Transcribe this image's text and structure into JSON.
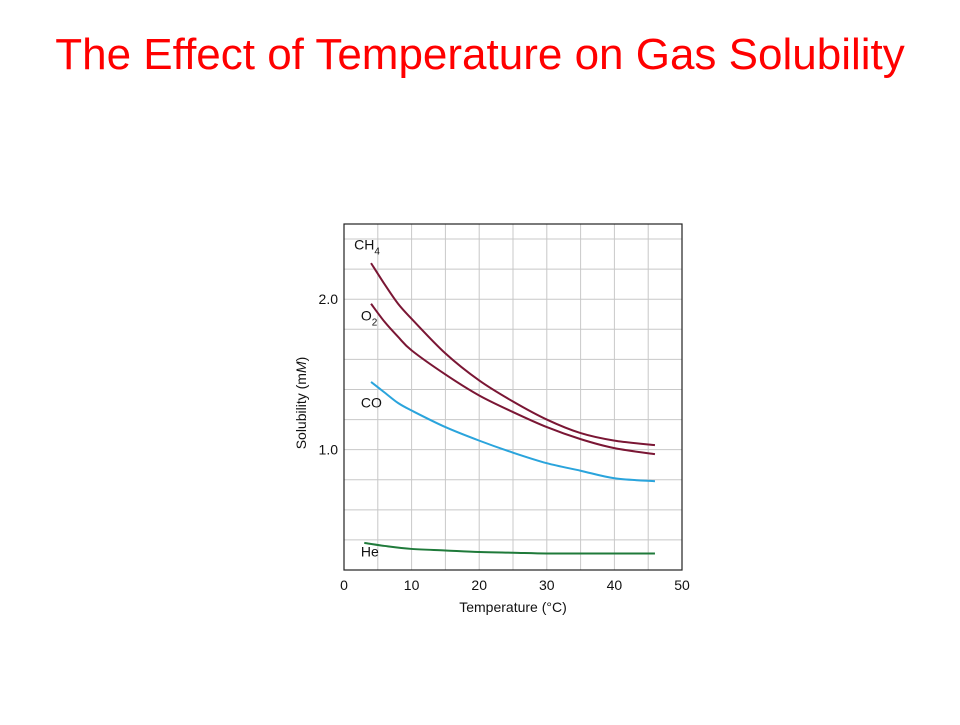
{
  "slide": {
    "title": "The Effect of Temperature on Gas Solubility"
  },
  "chart_data": {
    "type": "line",
    "title": "",
    "xlabel": "Temperature (°C)",
    "ylabel_main": "Solubility (m",
    "ylabel_unit": "M",
    "ylabel_close": ")",
    "xlim": [
      0,
      50
    ],
    "ylim": [
      0.2,
      2.5
    ],
    "xticks": [
      0,
      10,
      20,
      30,
      40,
      50
    ],
    "xtick_labels": [
      "0",
      "10",
      "20",
      "30",
      "40",
      "50"
    ],
    "yticks": [
      1.0,
      2.0
    ],
    "ytick_labels": [
      "1.0",
      "2.0"
    ],
    "grid": true,
    "legend": "inline labels",
    "series": [
      {
        "name": "CH4",
        "label_main": "CH",
        "label_sub": "4",
        "color": "#7a1634",
        "label_at": [
          1.5,
          2.33
        ],
        "x": [
          4,
          6,
          8,
          10,
          15,
          20,
          25,
          30,
          35,
          40,
          46
        ],
        "y": [
          2.24,
          2.1,
          1.97,
          1.87,
          1.64,
          1.46,
          1.32,
          1.2,
          1.11,
          1.06,
          1.03
        ]
      },
      {
        "name": "O2",
        "label_main": "O",
        "label_sub": "2",
        "color": "#7a1634",
        "label_at": [
          2.5,
          1.86
        ],
        "x": [
          4,
          6,
          8,
          10,
          15,
          20,
          25,
          30,
          35,
          40,
          46
        ],
        "y": [
          1.97,
          1.85,
          1.75,
          1.66,
          1.5,
          1.36,
          1.25,
          1.15,
          1.07,
          1.01,
          0.97
        ]
      },
      {
        "name": "CO",
        "label_main": "CO",
        "label_sub": "",
        "color": "#2aa4dc",
        "label_at": [
          2.5,
          1.28
        ],
        "x": [
          4,
          6,
          8,
          10,
          15,
          20,
          25,
          30,
          35,
          40,
          46
        ],
        "y": [
          1.45,
          1.38,
          1.31,
          1.26,
          1.15,
          1.06,
          0.98,
          0.91,
          0.86,
          0.81,
          0.79
        ]
      },
      {
        "name": "He",
        "label_main": "He",
        "label_sub": "",
        "color": "#1f7a3a",
        "label_at": [
          2.5,
          0.29
        ],
        "x": [
          3,
          6,
          10,
          15,
          20,
          25,
          30,
          35,
          40,
          46
        ],
        "y": [
          0.38,
          0.36,
          0.34,
          0.33,
          0.32,
          0.315,
          0.31,
          0.31,
          0.31,
          0.31
        ]
      }
    ]
  }
}
